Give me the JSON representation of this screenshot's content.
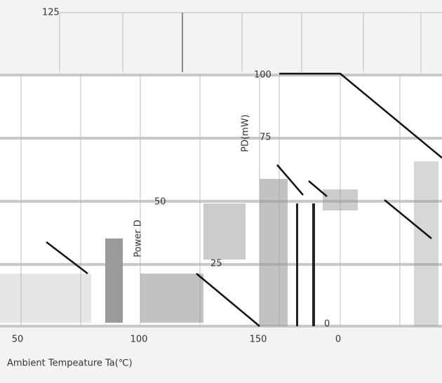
{
  "y_axis": {
    "label": "PD(mW)",
    "label_fragment": "Power D",
    "ticks": [
      "125",
      "100",
      "75",
      "50",
      "25",
      "0"
    ]
  },
  "x_axis": {
    "label": "Ambient Tempeature Ta(℃)",
    "ticks": [
      "50",
      "100",
      "150",
      "0"
    ]
  }
}
